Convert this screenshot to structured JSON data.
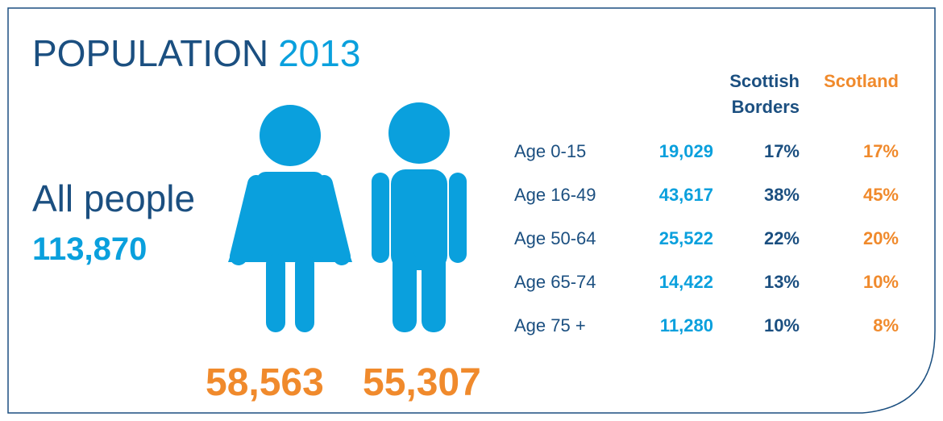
{
  "title": {
    "word": "POPULATION",
    "year": "2013"
  },
  "all_people": {
    "label": "All people",
    "total": "113,870"
  },
  "gender": {
    "female": "58,563",
    "male": "55,307"
  },
  "table": {
    "headers": {
      "borders_line1": "Scottish",
      "borders_line2": "Borders",
      "scotland": "Scotland"
    },
    "rows": [
      [
        "Age 0-15",
        "19,029",
        "17%",
        "17%"
      ],
      [
        "Age 16-49",
        "43,617",
        "38%",
        "45%"
      ],
      [
        "Age 50-64",
        "25,522",
        "22%",
        "20%"
      ],
      [
        "Age 65-74",
        "14,422",
        "13%",
        "10%"
      ],
      [
        "Age 75 +",
        "11,280",
        "10%",
        "8%"
      ]
    ]
  }
}
